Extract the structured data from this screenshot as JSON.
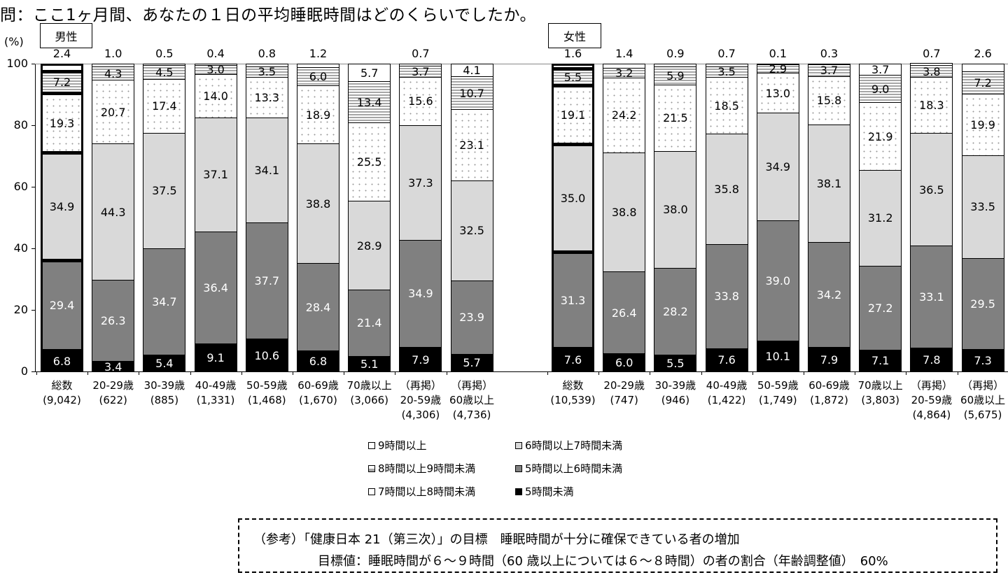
{
  "title": "問：ここ1ヶ月間、あなたの１日の平均睡眠時間はどのくらいでしたか。",
  "y_unit": "(%)",
  "y_ticks": [
    "100",
    "80",
    "60",
    "40",
    "20",
    "0"
  ],
  "groups": {
    "men": {
      "label": "男性"
    },
    "women": {
      "label": "女性"
    }
  },
  "legend": [
    {
      "label": "9時間以上",
      "color": "#ffffff"
    },
    {
      "label": "8時間以上9時間未満",
      "color": "#a6a6a6"
    },
    {
      "label": "7時間以上8時間未満",
      "color": "#ffffff"
    },
    {
      "label": "6時間以上7時間未満",
      "color": "#d9d9d9"
    },
    {
      "label": "5時間以上6時間未満",
      "color": "#808080"
    },
    {
      "label": "5時間未満",
      "color": "#000000"
    }
  ],
  "note": {
    "line1": "（参考）「健康日本 21（第三次）」の目標　睡眠時間が十分に確保できている者の増加",
    "line2": "目標値：睡眠時間が６～９時間（60 歳以上については６～８時間）の者の割合（年齢調整値）　60%"
  },
  "chart_data": {
    "type": "bar",
    "stacked": true,
    "title": "問：ここ1ヶ月間、あなたの１日の平均睡眠時間はどのくらいでしたか。",
    "ylabel": "(%)",
    "ylim": [
      0,
      100
    ],
    "yticks": [
      0,
      20,
      40,
      60,
      80,
      100
    ],
    "legend_position": "bottom",
    "series_names": [
      "5時間未満",
      "5時間以上6時間未満",
      "6時間以上7時間未満",
      "7時間以上8時間未満",
      "8時間以上9時間未満",
      "9時間以上"
    ],
    "panels": [
      {
        "name": "男性",
        "categories": [
          {
            "line1": "総数",
            "line2": "(9,042)",
            "line3": ""
          },
          {
            "line1": "20-29歳",
            "line2": "(622)",
            "line3": ""
          },
          {
            "line1": "30-39歳",
            "line2": "(885)",
            "line3": ""
          },
          {
            "line1": "40-49歳",
            "line2": "(1,331)",
            "line3": ""
          },
          {
            "line1": "50-59歳",
            "line2": "(1,468)",
            "line3": ""
          },
          {
            "line1": "60-69歳",
            "line2": "(1,670)",
            "line3": ""
          },
          {
            "line1": "70歳以上",
            "line2": "(3,066)",
            "line3": ""
          },
          {
            "line1": "（再掲）",
            "line2": "20-59歳",
            "line3": "(4,306)"
          },
          {
            "line1": "（再掲）",
            "line2": "60歳以上",
            "line3": "(4,736)"
          }
        ],
        "values": [
          [
            6.8,
            29.4,
            34.9,
            19.3,
            7.2,
            2.4
          ],
          [
            3.4,
            26.3,
            44.3,
            20.7,
            4.3,
            1.0
          ],
          [
            5.4,
            34.7,
            37.5,
            17.4,
            4.5,
            0.5
          ],
          [
            9.1,
            36.4,
            37.1,
            14.0,
            3.0,
            0.4
          ],
          [
            10.6,
            37.7,
            34.1,
            13.3,
            3.5,
            0.8
          ],
          [
            6.8,
            28.4,
            38.8,
            18.9,
            6.0,
            1.2
          ],
          [
            5.1,
            21.4,
            28.9,
            25.5,
            13.4,
            5.7
          ],
          [
            7.9,
            34.9,
            37.3,
            15.6,
            3.7,
            0.7
          ],
          [
            5.7,
            23.9,
            32.5,
            23.1,
            10.7,
            4.1
          ]
        ],
        "label_above": [
          true,
          true,
          true,
          true,
          true,
          true,
          false,
          true,
          false
        ]
      },
      {
        "name": "女性",
        "categories": [
          {
            "line1": "総数",
            "line2": "(10,539)",
            "line3": ""
          },
          {
            "line1": "20-29歳",
            "line2": "(747)",
            "line3": ""
          },
          {
            "line1": "30-39歳",
            "line2": "(946)",
            "line3": ""
          },
          {
            "line1": "40-49歳",
            "line2": "(1,422)",
            "line3": ""
          },
          {
            "line1": "50-59歳",
            "line2": "(1,749)",
            "line3": ""
          },
          {
            "line1": "60-69歳",
            "line2": "(1,872)",
            "line3": ""
          },
          {
            "line1": "70歳以上",
            "line2": "(3,803)",
            "line3": ""
          },
          {
            "line1": "（再掲）",
            "line2": "20-59歳",
            "line3": "(4,864)"
          },
          {
            "line1": "（再掲）",
            "line2": "60歳以上",
            "line3": "(5,675)"
          }
        ],
        "values": [
          [
            7.6,
            31.3,
            35.0,
            19.1,
            5.5,
            1.6
          ],
          [
            6.0,
            26.4,
            38.8,
            24.2,
            3.2,
            1.4
          ],
          [
            5.5,
            28.2,
            38.0,
            21.5,
            5.9,
            0.9
          ],
          [
            7.6,
            33.8,
            35.8,
            18.5,
            3.5,
            0.7
          ],
          [
            10.1,
            39.0,
            34.9,
            13.0,
            2.9,
            0.1
          ],
          [
            7.9,
            34.2,
            38.1,
            15.8,
            3.7,
            0.3
          ],
          [
            7.1,
            27.2,
            31.2,
            21.9,
            9.0,
            3.7
          ],
          [
            7.8,
            33.1,
            36.5,
            18.3,
            3.8,
            0.7
          ],
          [
            7.3,
            29.5,
            33.5,
            19.9,
            7.2,
            2.6
          ]
        ],
        "label_above": [
          true,
          true,
          true,
          true,
          true,
          true,
          false,
          true,
          true
        ]
      }
    ]
  }
}
